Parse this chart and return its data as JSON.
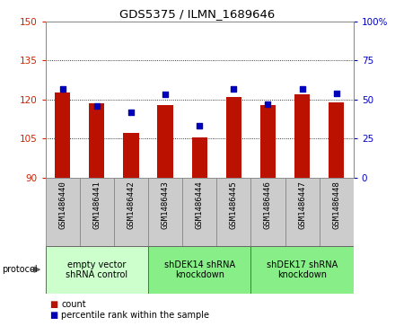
{
  "title": "GDS5375 / ILMN_1689646",
  "samples": [
    "GSM1486440",
    "GSM1486441",
    "GSM1486442",
    "GSM1486443",
    "GSM1486444",
    "GSM1486445",
    "GSM1486446",
    "GSM1486447",
    "GSM1486448"
  ],
  "count_values": [
    122.5,
    118.5,
    107.0,
    118.0,
    105.5,
    121.0,
    118.0,
    122.0,
    119.0
  ],
  "percentile_values": [
    57,
    46,
    42,
    53,
    33,
    57,
    47,
    57,
    54
  ],
  "ylim_left": [
    90,
    150
  ],
  "ylim_right": [
    0,
    100
  ],
  "yticks_left": [
    90,
    105,
    120,
    135,
    150
  ],
  "yticks_right": [
    0,
    25,
    50,
    75,
    100
  ],
  "bar_color": "#BB1100",
  "dot_color": "#0000BB",
  "left_tick_color": "#CC2200",
  "right_tick_color": "#0000CC",
  "grid_color": "#000000",
  "col_bg_color": "#CCCCCC",
  "col_edge_color": "#888888",
  "groups": [
    {
      "label": "empty vector\nshRNA control",
      "start": 0,
      "end": 3,
      "color": "#CCFFCC"
    },
    {
      "label": "shDEK14 shRNA\nknockdown",
      "start": 3,
      "end": 6,
      "color": "#88EE88"
    },
    {
      "label": "shDEK17 shRNA\nknockdown",
      "start": 6,
      "end": 9,
      "color": "#88EE88"
    }
  ],
  "protocol_label": "protocol",
  "legend_count_label": "count",
  "legend_percentile_label": "percentile rank within the sample",
  "bar_width": 0.45
}
